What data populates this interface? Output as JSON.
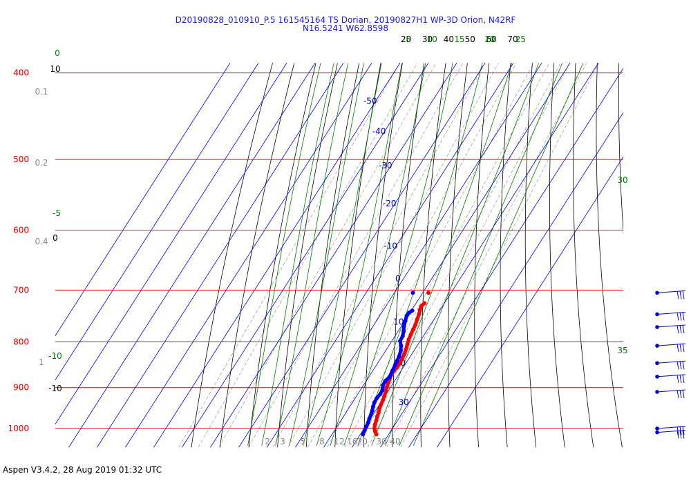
{
  "header": {
    "title_line1": "D20190828_010910_P.5 161545164 TS Dorian, 20190827H1 WP-3D Orion, N42RF",
    "title_line2": "N16.5241 W62.8598"
  },
  "footer": {
    "text": "Aspen V3.4.2, 28 Aug 2019  01:32 UTC"
  },
  "colors": {
    "isobar": "#e00000",
    "isotherm": "#0000cc",
    "dry_adiabat": "#000000",
    "moist_adiabat": "#007700",
    "mixing_ratio": "#888888",
    "temperature": "#ff0000",
    "dewpoint": "#0000ff",
    "wind_barb": "#0000cc"
  },
  "chart_data": {
    "type": "skew-t log-p",
    "pressure_range_hPa": [
      1025,
      400
    ],
    "pressure_labels": [
      "400",
      "500",
      "600",
      "700",
      "800",
      "900",
      "1000"
    ],
    "isotherm_labels": [
      {
        "label": "-50",
        "t": -50,
        "p": 430
      },
      {
        "label": "-40",
        "t": -40,
        "p": 465
      },
      {
        "label": "-30",
        "t": -30,
        "p": 508
      },
      {
        "label": "-20",
        "t": -20,
        "p": 560
      },
      {
        "label": "-10",
        "t": -10,
        "p": 625
      },
      {
        "label": "0",
        "t": 0,
        "p": 680
      },
      {
        "label": "10",
        "t": 10,
        "p": 760
      },
      {
        "label": "20",
        "t": 20,
        "p": 845
      },
      {
        "label": "30",
        "t": 30,
        "p": 935
      }
    ],
    "dry_adiabat_labels_top": [
      "20",
      "30",
      "40",
      "50",
      "60",
      "70"
    ],
    "dry_adiabat_labels_left": [
      "10",
      "0",
      "-10"
    ],
    "moist_adiabat_labels_top": [
      "5",
      "10",
      "15",
      "20",
      "25"
    ],
    "moist_adiabat_labels_side": [
      "0",
      "-5",
      "-10",
      "30",
      "35"
    ],
    "mixing_ratio_labels_left": [
      "0.1",
      "0.2",
      "0.4",
      "1"
    ],
    "mixing_ratio_labels_bottom": [
      "2",
      "3",
      "5",
      "8",
      "12",
      "16",
      "20",
      "30",
      "40"
    ],
    "temperature_profile": [
      {
        "p": 1015,
        "t": 25.6
      },
      {
        "p": 1008,
        "t": 24.6
      },
      {
        "p": 1000,
        "t": 23.6
      },
      {
        "p": 990,
        "t": 22.9
      },
      {
        "p": 980,
        "t": 22.5
      },
      {
        "p": 970,
        "t": 21.9
      },
      {
        "p": 960,
        "t": 21.5
      },
      {
        "p": 950,
        "t": 20.9
      },
      {
        "p": 940,
        "t": 20.5
      },
      {
        "p": 930,
        "t": 20.2
      },
      {
        "p": 920,
        "t": 19.8
      },
      {
        "p": 910,
        "t": 19.3
      },
      {
        "p": 900,
        "t": 18.7
      },
      {
        "p": 890,
        "t": 18.2
      },
      {
        "p": 880,
        "t": 17.8
      },
      {
        "p": 870,
        "t": 17.5
      },
      {
        "p": 862,
        "t": 17.5
      },
      {
        "p": 855,
        "t": 17.7
      },
      {
        "p": 845,
        "t": 17.9
      },
      {
        "p": 835,
        "t": 17.6
      },
      {
        "p": 825,
        "t": 17.3
      },
      {
        "p": 815,
        "t": 16.8
      },
      {
        "p": 805,
        "t": 16.2
      },
      {
        "p": 795,
        "t": 15.6
      },
      {
        "p": 785,
        "t": 15.2
      },
      {
        "p": 775,
        "t": 14.9
      },
      {
        "p": 765,
        "t": 14.6
      },
      {
        "p": 755,
        "t": 14.0
      },
      {
        "p": 745,
        "t": 13.5
      },
      {
        "p": 737,
        "t": 12.9
      },
      {
        "p": 730,
        "t": 12.5
      },
      {
        "p": 724,
        "t": 12.9
      }
    ],
    "dewpoint_profile": [
      {
        "p": 1015,
        "t": 20.9
      },
      {
        "p": 1005,
        "t": 20.6
      },
      {
        "p": 995,
        "t": 20.3
      },
      {
        "p": 985,
        "t": 20.1
      },
      {
        "p": 975,
        "t": 19.6
      },
      {
        "p": 965,
        "t": 19.3
      },
      {
        "p": 955,
        "t": 18.8
      },
      {
        "p": 945,
        "t": 18.2
      },
      {
        "p": 935,
        "t": 17.7
      },
      {
        "p": 925,
        "t": 17.6
      },
      {
        "p": 915,
        "t": 17.9
      },
      {
        "p": 905,
        "t": 17.7
      },
      {
        "p": 895,
        "t": 16.9
      },
      {
        "p": 885,
        "t": 16.7
      },
      {
        "p": 875,
        "t": 17.3
      },
      {
        "p": 862,
        "t": 16.9
      },
      {
        "p": 850,
        "t": 16.6
      },
      {
        "p": 840,
        "t": 16.3
      },
      {
        "p": 830,
        "t": 16.0
      },
      {
        "p": 818,
        "t": 15.3
      },
      {
        "p": 808,
        "t": 14.3
      },
      {
        "p": 798,
        "t": 12.9
      },
      {
        "p": 788,
        "t": 12.7
      },
      {
        "p": 778,
        "t": 11.9
      },
      {
        "p": 768,
        "t": 10.9
      },
      {
        "p": 758,
        "t": 10.2
      },
      {
        "p": 748,
        "t": 9.5
      },
      {
        "p": 742,
        "t": 9.7
      },
      {
        "p": 738,
        "t": 10.3
      }
    ],
    "isolated_points": [
      {
        "series": "temperature",
        "p": 705,
        "t": 12.0
      },
      {
        "series": "dewpoint",
        "p": 705,
        "t": 6.5
      }
    ],
    "wind_barb_levels_hPa": [
      705,
      745,
      770,
      808,
      845,
      875,
      910,
      1000,
      1010
    ]
  }
}
